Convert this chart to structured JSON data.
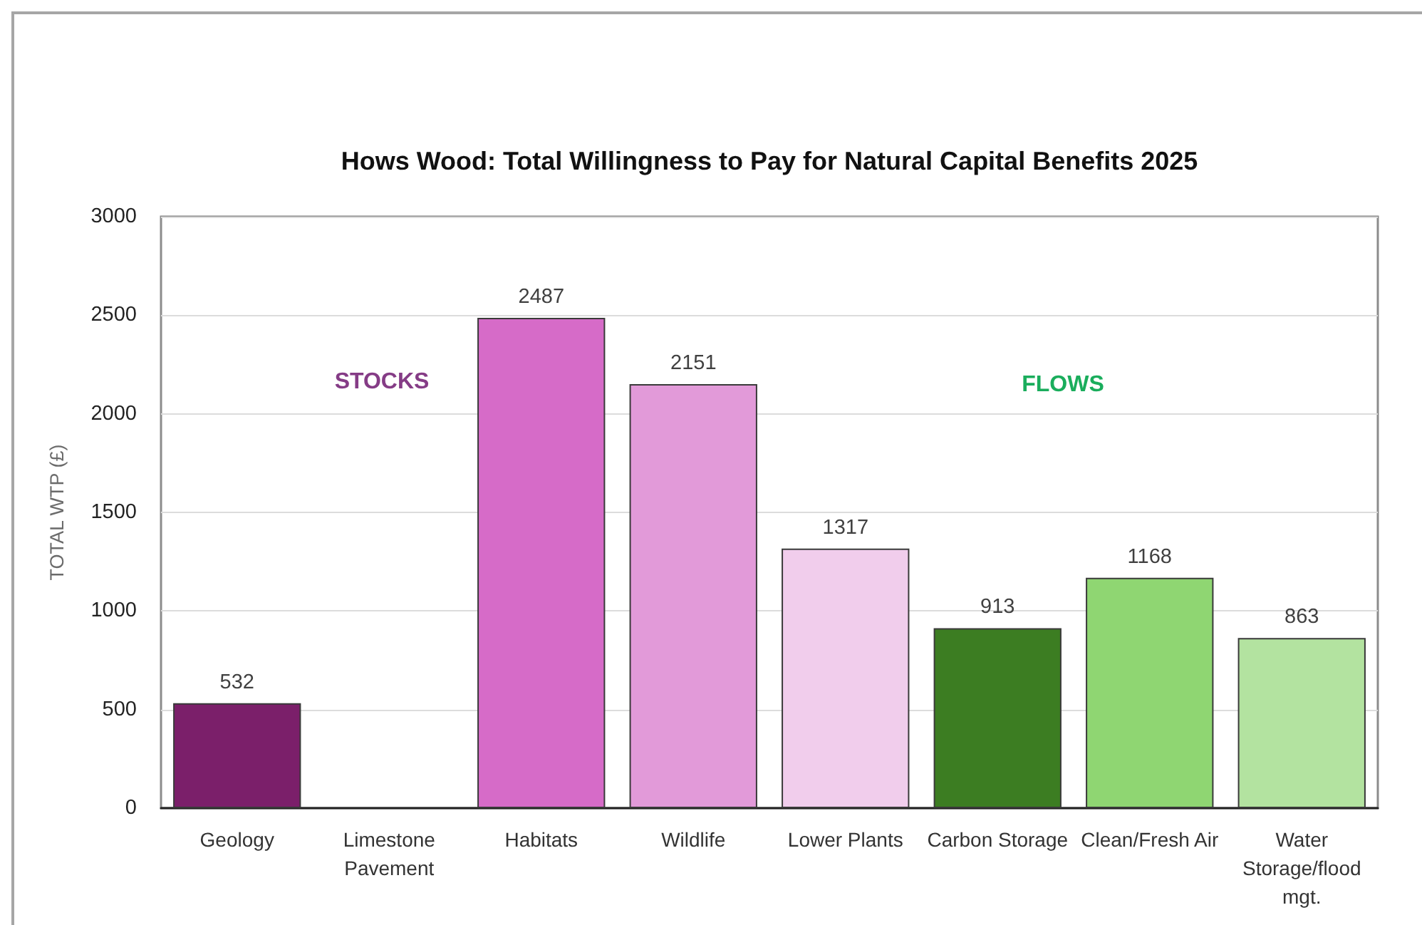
{
  "chart_data": {
    "type": "bar",
    "title": "Hows Wood: Total Willingness to Pay for Natural Capital Benefits 2025",
    "ylabel": "TOTAL WTP (£)",
    "categories": [
      "Geology",
      "Limestone Pavement",
      "Habitats",
      "Wildlife",
      "Lower Plants",
      "Carbon Storage",
      "Clean/Fresh Air",
      "Water Storage/flood mgt."
    ],
    "values": [
      532,
      null,
      2487,
      2151,
      1317,
      913,
      1168,
      863
    ],
    "colors": [
      "#7b1f6a",
      null,
      "#d66bc8",
      "#e29ad9",
      "#f1cdec",
      "#3c7d22",
      "#8fd672",
      "#b3e3a0"
    ],
    "ylim": [
      0,
      3000
    ],
    "yticks": [
      0,
      500,
      1000,
      1500,
      2000,
      2500,
      3000
    ],
    "grid": "y",
    "data_labels": true,
    "annotations": [
      "STOCKS",
      "FLOWS"
    ]
  }
}
